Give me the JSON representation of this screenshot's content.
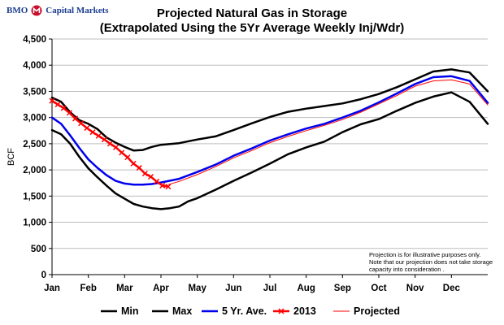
{
  "logo": {
    "text": "BMO Ⓜ Capital Markets",
    "brand": "BMO",
    "name": "Capital Markets",
    "color": "#1a3c8f"
  },
  "chart_data": {
    "type": "line",
    "title": "Projected Natural Gas in Storage",
    "subtitle": "(Extrapolated Using the 5Yr Average Weekly Inj/Wdr)",
    "xlabel": "",
    "ylabel": "BCF",
    "ylim": [
      0,
      4500
    ],
    "yticks": [
      "0",
      "500",
      "1,000",
      "1,500",
      "2,000",
      "2,500",
      "3,000",
      "3,500",
      "4,000",
      "4,500"
    ],
    "xlim": [
      0,
      12
    ],
    "months": [
      "Jan",
      "Feb",
      "Mar",
      "Apr",
      "May",
      "Jun",
      "Jul",
      "Aug",
      "Sep",
      "Oct",
      "Nov",
      "Dec"
    ],
    "grid": true,
    "note": [
      "Projection is for illustrative purposes only.",
      "Note that our projection does not take storage",
      "capacity into consideration ."
    ],
    "series": [
      {
        "name": "Min",
        "color": "#000000",
        "width": 2.5,
        "marker": false,
        "x": [
          0,
          0.25,
          0.5,
          0.75,
          1.0,
          1.25,
          1.5,
          1.75,
          2.0,
          2.25,
          2.5,
          2.75,
          3.0,
          3.25,
          3.5,
          3.75,
          4.0,
          4.5,
          5.0,
          5.5,
          6.0,
          6.5,
          7.0,
          7.5,
          8.0,
          8.5,
          9.0,
          9.5,
          10.0,
          10.5,
          11.0,
          11.5,
          12.0
        ],
        "y": [
          2760,
          2680,
          2500,
          2250,
          2030,
          1860,
          1700,
          1550,
          1450,
          1350,
          1300,
          1270,
          1250,
          1270,
          1300,
          1400,
          1460,
          1620,
          1790,
          1950,
          2120,
          2300,
          2430,
          2540,
          2720,
          2870,
          2970,
          3130,
          3280,
          3400,
          3480,
          3300,
          2880
        ]
      },
      {
        "name": "Max",
        "color": "#000000",
        "width": 2.5,
        "marker": false,
        "x": [
          0,
          0.25,
          0.5,
          0.75,
          1.0,
          1.25,
          1.5,
          1.75,
          2.0,
          2.25,
          2.5,
          2.75,
          3.0,
          3.5,
          4.0,
          4.5,
          5.0,
          5.5,
          6.0,
          6.5,
          7.0,
          7.5,
          8.0,
          8.5,
          9.0,
          9.5,
          10.0,
          10.5,
          11.0,
          11.5,
          12.0
        ],
        "y": [
          3380,
          3300,
          3100,
          2950,
          2880,
          2780,
          2620,
          2520,
          2440,
          2370,
          2380,
          2440,
          2480,
          2510,
          2580,
          2640,
          2760,
          2890,
          3010,
          3110,
          3170,
          3220,
          3270,
          3350,
          3450,
          3580,
          3730,
          3880,
          3920,
          3860,
          3500
        ]
      },
      {
        "name": "5 Yr. Ave.",
        "color": "#0000ee",
        "width": 2.5,
        "marker": false,
        "x": [
          0,
          0.25,
          0.5,
          0.75,
          1.0,
          1.25,
          1.5,
          1.75,
          2.0,
          2.25,
          2.5,
          2.75,
          3.0,
          3.5,
          4.0,
          4.5,
          5.0,
          5.5,
          6.0,
          6.5,
          7.0,
          7.5,
          8.0,
          8.5,
          9.0,
          9.5,
          10.0,
          10.5,
          11.0,
          11.5,
          12.0
        ],
        "y": [
          3000,
          2880,
          2660,
          2420,
          2200,
          2040,
          1900,
          1790,
          1740,
          1720,
          1720,
          1730,
          1760,
          1830,
          1960,
          2100,
          2270,
          2410,
          2560,
          2680,
          2790,
          2880,
          3000,
          3130,
          3290,
          3460,
          3640,
          3770,
          3790,
          3700,
          3280
        ]
      },
      {
        "name": "2013",
        "color": "#ff0000",
        "width": 2.5,
        "marker": true,
        "x": [
          0,
          0.16,
          0.32,
          0.48,
          0.64,
          0.8,
          0.96,
          1.12,
          1.28,
          1.44,
          1.6,
          1.76,
          1.92,
          2.08,
          2.24,
          2.4,
          2.56,
          2.72,
          2.88,
          3.04,
          3.2
        ],
        "y": [
          3320,
          3250,
          3180,
          3090,
          2980,
          2890,
          2800,
          2720,
          2650,
          2580,
          2500,
          2430,
          2330,
          2240,
          2120,
          2040,
          1930,
          1870,
          1780,
          1700,
          1680
        ]
      },
      {
        "name": "Projected",
        "color": "#ff0000",
        "width": 1,
        "marker": false,
        "x": [
          3.2,
          3.5,
          4.0,
          4.5,
          5.0,
          5.5,
          6.0,
          6.5,
          7.0,
          7.5,
          8.0,
          8.5,
          9.0,
          9.5,
          10.0,
          10.5,
          11.0,
          11.5,
          12.0
        ],
        "y": [
          1720,
          1780,
          1910,
          2060,
          2230,
          2370,
          2520,
          2640,
          2750,
          2850,
          2960,
          3100,
          3260,
          3420,
          3600,
          3700,
          3720,
          3640,
          3240
        ]
      }
    ]
  }
}
